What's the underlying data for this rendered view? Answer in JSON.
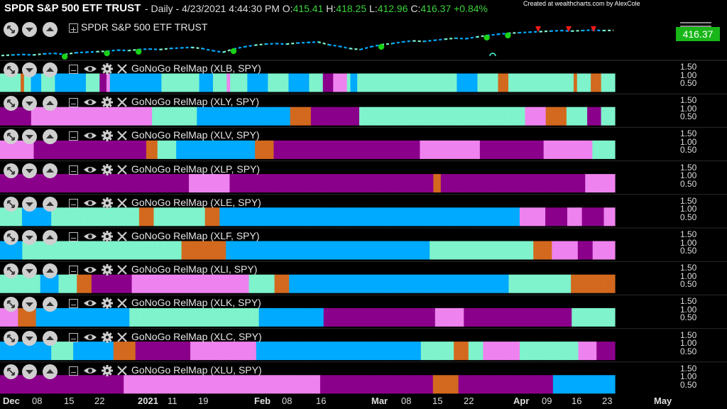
{
  "header": {
    "title": "SPDR S&P 500 ETF TRUST",
    "period": "- Daily - 4/23/2021 4:44:30 PM",
    "open_label": "O:",
    "open": "415.41",
    "high_label": "H:",
    "high": "418.25",
    "low_label": "L:",
    "low": "412.96",
    "close_label": "C:",
    "close": "416.37",
    "change": "+0.84%",
    "credit": "Created at wealthcharts.com by AlexCole"
  },
  "price_panel": {
    "title": "SPDR S&P 500 ETF TRUST",
    "last_price": "416.37"
  },
  "colors": {
    "strong_go": "#00aaff",
    "go": "#7ff3cb",
    "go_fading": "#ee82ee",
    "nogo": "#8b008b",
    "caution": "#d2691e",
    "background": "#000000",
    "price_badge": "#19b619"
  },
  "icons": [
    "expand-icon",
    "chevron-down-icon",
    "chevron-up-icon",
    "collapse-box-icon",
    "eye-icon",
    "gear-icon",
    "close-icon",
    "menu-icon"
  ],
  "y_ticks": [
    "1.50",
    "1.00",
    "0.50"
  ],
  "x_ticks": [
    {
      "label": "Dec",
      "bold": true
    },
    {
      "label": "08",
      "bold": false
    },
    {
      "label": "15",
      "bold": false
    },
    {
      "label": "22",
      "bold": false
    },
    {
      "label": "2021",
      "bold": true
    },
    {
      "label": "11",
      "bold": false
    },
    {
      "label": "19",
      "bold": false
    },
    {
      "label": "Feb",
      "bold": true
    },
    {
      "label": "08",
      "bold": false
    },
    {
      "label": "16",
      "bold": false
    },
    {
      "label": "Mar",
      "bold": true
    },
    {
      "label": "08",
      "bold": false
    },
    {
      "label": "15",
      "bold": false
    },
    {
      "label": "22",
      "bold": false
    },
    {
      "label": "Apr",
      "bold": true
    },
    {
      "label": "09",
      "bold": false
    },
    {
      "label": "16",
      "bold": false
    },
    {
      "label": "23",
      "bold": false
    },
    {
      "label": "May",
      "bold": true
    }
  ],
  "chart_data": {
    "type": "heatmap",
    "legend": "",
    "panels": [
      {
        "title": "GoNoGo RelMap (XLB, SPY)",
        "colors": "GGGGGGCGGSSSGGGGSSSSSSSSSGGGGNNFSSSSSSSSSSSSSSSGGGGGGGGGGGSSSSGGGGFGGGGGSSSSSSGGGGGGSSSSSSGGGGNNNFFFFGSSGGGGGGGGGGGGGGGGGGGGGGGGGGGGGSSSSSSGGGGGGCCCGGGGGGGGGGGGGGGGGGGCGGGGCCCGGGG"
      },
      {
        "title": "GoNoGo RelMap (XLY, SPY)",
        "colors": "NNNNNNNNNFFFFFFFFFFFFFFFFFFFFFFFFFFFFFFFFFFFGGGGGGGGGGGGGSSSSSSSSSSSSSSSSSSSSSSSSSSSCCCCCCNNNNNNNNNNNNNNGGGGGGGGGGGGGGGGGGGGGGGGGGGGGGGGGGGGGGGGGGGGGGGGFFFFFFCCCCCCGGGGGGNNNNGGGG"
      },
      {
        "title": "GoNoGo RelMap (XLV, SPY)",
        "colors": "FFFFFFFFFNNNNNNNNNNNNNNNNNNNNNNNNNNNNNNCCCGGGGGSSSSSSSSSSSSSSSSSSSSSCCCCCNNNNNNNNNNNNNNNNNNNNNNNNNNNNNNNNNNNNNNNFFFFFFFFFFFFFFFFNNNNNNNNNNNNNNNNNFFFFFFFFFFFFFGGGGGG"
      },
      {
        "title": "GoNoGo RelMap (XLP, SPY)",
        "colors": "NNNNNNNNNNNNNNNNNNNNNNNNNNNNNNNNNNNNNNNNNNNNNNNNNNNFFFFFFFFFFFNNNNNNNNNNNNNNNNNNNNNNNNNNNNNNNNNNNNNNNNNNNNNNNNNNNNNNNCCNNNNNNNNNNNNNNNNNNNNNNNNNNNNNNNNNNNNNNNFFFFFFFF"
      },
      {
        "title": "GoNoGo RelMap (XLE, SPY)",
        "colors": "GGGGGGSSSSSSSSGGGGGGGGGGGGGGGGGGGGGGGGCCCCGGGGGGGGGGGGGGCCCCSSSSSSSSSSSSSSSSSSSSSSSSSSSSSSSSSSSSSSSSSSSSSSSSSSSSSSSSSSSSSSSSSSSSSSSSSSSSSSSSSSFFFFFFFNNNNNNFFFFNNNNNNFFF"
      },
      {
        "title": "GoNoGo RelMap (XLF, SPY)",
        "colors": "SSSSSSGGGGGGGGGGGGGGGGGGGGGGGGGGGGGGGGGGGGGGGGGGGCCCCCCCCCCCCSSSSSSSSSSSSSSSSSSSSSSSSSSSSSSSSSSSSSSSSSSSSSSSSSSSSSSSGGGGGGGGGGGGGGGGGGGGGGGGGGGGCCCCCFFFFFFFNNNNFFFFFF"
      },
      {
        "title": "GoNoGo RelMap (XLI, SPY)",
        "colors": "GGGGGGGGGGGSSSSSGGGGGCCCCNNNNNNNNNNNFFFFFFFFFFFFFFFFFFFFFFFFFFFFFFFFGGGGGGGCCCCSSSSSSSSSSSSSSSSSSSSSSSSSSSSSSSSSSSSSSSSSSSSSSSSSSSSSSSSSSSSGGGGGGGGGGGGGGGGGCCCCCCCCCCCC"
      },
      {
        "title": "GoNoGo RelMap (XLK, SPY)",
        "colors": "FFFFFCCCCCSSSSSSSSSSSSSSSSSSSSSSSSSSGGGGGGGGGGGGGGGGGGGGGGGGGGGGGGGGGGGGSSSSSSSSSSSSSSSSSSNNNNNNNNNNNNNNNNNNNNNNNNNNNNNNNFFFFFFFFNNNNNNNNNNNNNNNNNNNNNNNNNNNNNNGGGGGGGGGGGG"
      },
      {
        "title": "GoNoGo RelMap (XLC, SPY)",
        "colors": "SSSSSSSSSSSSSSGGGGGGSSSSSSSSSSSCCCCCCNNNNNNNNNNNNNNNFFFFFFFFFFFFFFFFFFSSSSSSSSSSSSSSSSSSSSSSSSSSSSSSSSSSSSSSSSSSSSSGGGGGGGGGCCCCGGGGFFFFFFFFFFGGGGGGGGGGGGGGGGFFFFFNNNNN"
      },
      {
        "title": "GoNoGo RelMap (XLU, SPY)",
        "colors": "NNNNNNNNNNNNNNNNNNNNNNNNNNNNNNNNNNFFFFFFFFFFFFFFFFFFFFFFFFFFFFFFFFFFFFFFFFFFFFFFFFFFFFFFNNNNNNNNNNNNNNNNNNNNNNNNNNNNNNNCCCCCCCNNNNNNNNNNNNNNNNNNNNNNNNNNSSSSSSSSSSSSSSSSS"
      }
    ],
    "price_line": {
      "type": "line",
      "values": [
        370,
        371,
        372,
        371,
        373,
        374,
        372,
        375,
        376,
        377,
        378,
        380,
        379,
        381,
        382,
        381,
        383,
        384,
        385,
        383,
        379,
        376,
        382,
        386,
        389,
        391,
        392,
        391,
        393,
        394,
        395,
        390,
        387,
        383,
        381,
        386,
        390,
        392,
        395,
        397,
        396,
        398,
        400,
        402,
        401,
        404,
        407,
        409,
        411,
        412,
        413,
        414,
        415,
        416,
        415,
        416,
        417,
        416,
        416.37
      ],
      "go_dots_count": 7,
      "red_triangles_count": 4
    }
  }
}
